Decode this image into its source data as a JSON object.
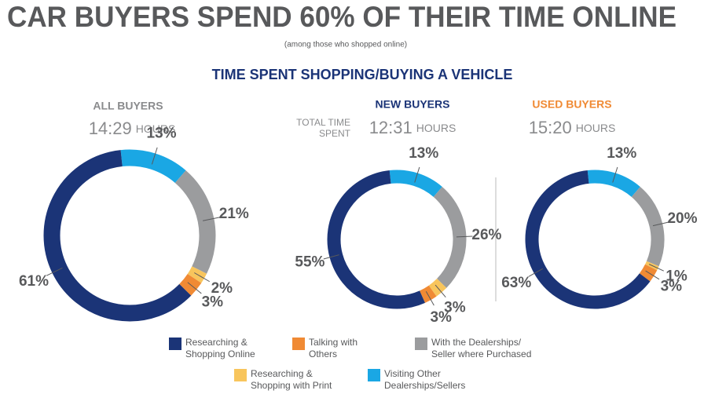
{
  "header": {
    "title": "CAR BUYERS SPEND 60% OF THEIR TIME ONLINE",
    "subtitle": "(among those who shopped online)",
    "section_title": "TIME SPENT SHOPPING/BUYING A VEHICLE",
    "total_time_label": [
      "TOTAL TIME",
      "SPENT"
    ]
  },
  "legend": [
    {
      "lines": [
        "Visiting Other",
        "Dealerships/Sellers"
      ],
      "color": "#1aa7e4"
    },
    {
      "lines": [
        "With the Dealerships/",
        "Seller where Purchased"
      ],
      "color": "#9b9c9e"
    },
    {
      "lines": [
        "Researching &",
        "Shopping with Print"
      ],
      "color": "#f8c55c"
    },
    {
      "lines": [
        "Talking with",
        "Others"
      ],
      "color": "#f08a34"
    },
    {
      "lines": [
        "Researching &",
        "Shopping Online"
      ],
      "color": "#1b3477"
    }
  ],
  "chart_data": [
    {
      "type": "donut",
      "title": "ALL BUYERS",
      "title_color": "#8a8b8d",
      "total": "14:29",
      "unit": "HOURS",
      "values": [
        13,
        21,
        2,
        3,
        61
      ],
      "value_labels": [
        "13%",
        "21%",
        "2%",
        "3%",
        "61%"
      ]
    },
    {
      "type": "donut",
      "title": "NEW BUYERS",
      "title_color": "#1b3477",
      "total": "12:31",
      "unit": "HOURS",
      "values": [
        13,
        26,
        3,
        3,
        55
      ],
      "value_labels": [
        "13%",
        "26%",
        "3%",
        "3%",
        "55%"
      ]
    },
    {
      "type": "donut",
      "title": "USED BUYERS",
      "title_color": "#f08a34",
      "total": "15:20",
      "unit": "HOURS",
      "values": [
        13,
        20,
        1,
        3,
        63
      ],
      "value_labels": [
        "13%",
        "20%",
        "1%",
        "3%",
        "63%"
      ]
    }
  ]
}
